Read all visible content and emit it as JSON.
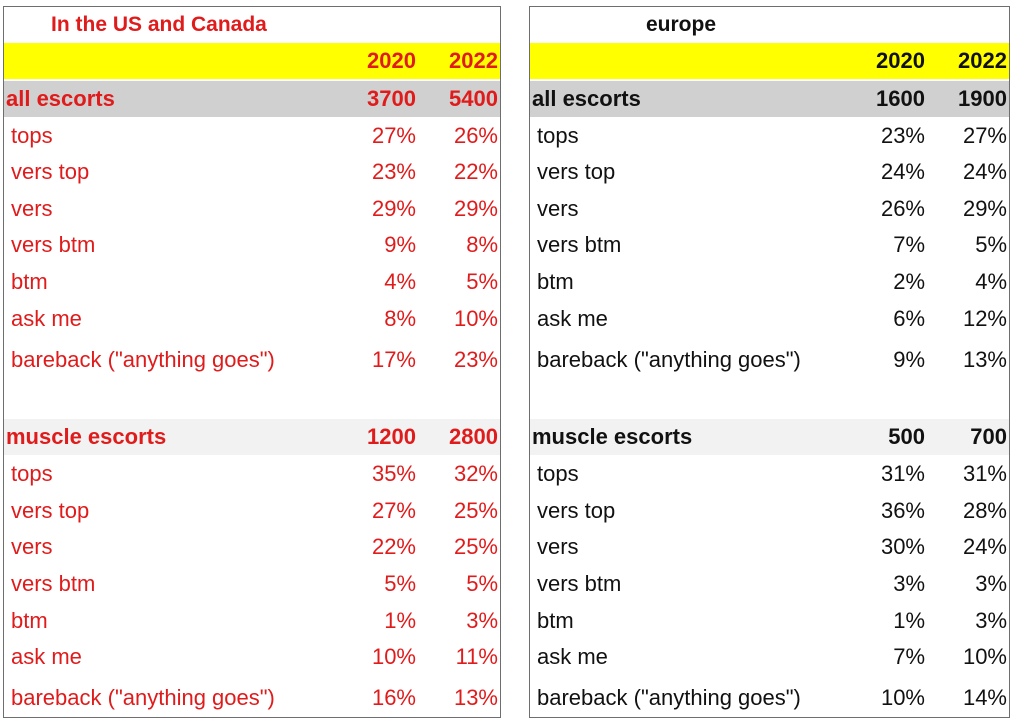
{
  "panels": [
    {
      "id": "us",
      "title": "In the US and Canada",
      "years": [
        "2020",
        "2022"
      ],
      "sections": [
        {
          "label": "all escorts",
          "totals": [
            "3700",
            "5400"
          ],
          "rows": [
            {
              "label": "tops",
              "values": [
                "27%",
                "26%"
              ]
            },
            {
              "label": "vers top",
              "values": [
                "23%",
                "22%"
              ]
            },
            {
              "label": "vers",
              "values": [
                "29%",
                "29%"
              ]
            },
            {
              "label": "vers btm",
              "values": [
                "9%",
                "8%"
              ]
            },
            {
              "label": "btm",
              "values": [
                "4%",
                "5%"
              ]
            },
            {
              "label": "ask me",
              "values": [
                "8%",
                "10%"
              ]
            },
            {
              "label": "bareback (\"anything goes\")",
              "values": [
                "17%",
                "23%"
              ]
            }
          ]
        },
        {
          "label": "muscle escorts",
          "totals": [
            "1200",
            "2800"
          ],
          "rows": [
            {
              "label": "tops",
              "values": [
                "35%",
                "32%"
              ]
            },
            {
              "label": "vers top",
              "values": [
                "27%",
                "25%"
              ]
            },
            {
              "label": "vers",
              "values": [
                "22%",
                "25%"
              ]
            },
            {
              "label": "vers btm",
              "values": [
                "5%",
                "5%"
              ]
            },
            {
              "label": "btm",
              "values": [
                "1%",
                "3%"
              ]
            },
            {
              "label": "ask me",
              "values": [
                "10%",
                "11%"
              ]
            },
            {
              "label": "bareback (\"anything goes\")",
              "values": [
                "16%",
                "13%"
              ]
            }
          ]
        }
      ]
    },
    {
      "id": "eu",
      "title": "europe",
      "years": [
        "2020",
        "2022"
      ],
      "sections": [
        {
          "label": "all escorts",
          "totals": [
            "1600",
            "1900"
          ],
          "rows": [
            {
              "label": "tops",
              "values": [
                "23%",
                "27%"
              ]
            },
            {
              "label": "vers top",
              "values": [
                "24%",
                "24%"
              ]
            },
            {
              "label": "vers",
              "values": [
                "26%",
                "29%"
              ]
            },
            {
              "label": "vers btm",
              "values": [
                "7%",
                "5%"
              ]
            },
            {
              "label": "btm",
              "values": [
                "2%",
                "4%"
              ]
            },
            {
              "label": "ask me",
              "values": [
                "6%",
                "12%"
              ]
            },
            {
              "label": "bareback (\"anything goes\")",
              "values": [
                "9%",
                "13%"
              ]
            }
          ]
        },
        {
          "label": "muscle escorts",
          "totals": [
            "500",
            "700"
          ],
          "rows": [
            {
              "label": "tops",
              "values": [
                "31%",
                "31%"
              ]
            },
            {
              "label": "vers top",
              "values": [
                "36%",
                "28%"
              ]
            },
            {
              "label": "vers",
              "values": [
                "30%",
                "24%"
              ]
            },
            {
              "label": "vers btm",
              "values": [
                "3%",
                "3%"
              ]
            },
            {
              "label": "btm",
              "values": [
                "1%",
                "3%"
              ]
            },
            {
              "label": "ask me",
              "values": [
                "7%",
                "10%"
              ]
            },
            {
              "label": "bareback (\"anything goes\")",
              "values": [
                "10%",
                "14%"
              ]
            }
          ]
        }
      ]
    }
  ],
  "colors": {
    "us_text": "#e01b1b",
    "eu_text": "#111111",
    "year_band": "#ffff00",
    "all_band": "#d0d0d0",
    "muscle_band": "#f2f2f2"
  }
}
